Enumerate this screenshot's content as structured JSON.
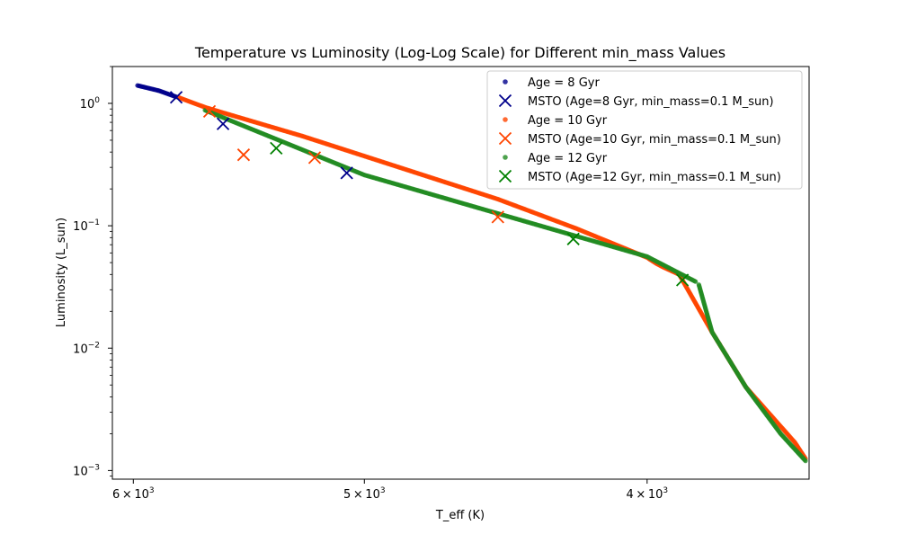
{
  "chart_data": {
    "type": "scatter",
    "title": "Temperature vs Luminosity (Log-Log Scale) for Different min_mass Values",
    "xlabel": "T_eff (K)",
    "ylabel": "Luminosity (L_sun)",
    "xscale": "log",
    "yscale": "log",
    "x_inverted": true,
    "xlim": [
      6100,
      3520
    ],
    "ylim": [
      0.00085,
      2.0
    ],
    "grid": false,
    "legend_position": "upper right",
    "x_major_ticks": [
      {
        "value": 6000,
        "base": "6 × 10",
        "exp": "3"
      },
      {
        "value": 5000,
        "base": "5 × 10",
        "exp": "3"
      },
      {
        "value": 4000,
        "base": "4 × 10",
        "exp": "3"
      }
    ],
    "y_major_ticks": [
      {
        "value": 1,
        "base": "10",
        "exp": "0"
      },
      {
        "value": 0.1,
        "base": "10",
        "exp": "−1"
      },
      {
        "value": 0.01,
        "base": "10",
        "exp": "−2"
      },
      {
        "value": 0.001,
        "base": "10",
        "exp": "−3"
      }
    ],
    "series": [
      {
        "name": "Age = 8 Gyr",
        "kind": "points",
        "color": "#00008b",
        "segments": [
          {
            "x": [
              5980,
              5880,
              5800
            ],
            "y": [
              1.4,
              1.27,
              1.13
            ]
          }
        ]
      },
      {
        "name": "MSTO (Age=8 Gyr, min_mass=0.1 M_sun)",
        "kind": "x-marker",
        "color": "#00008b",
        "x": [
          5800,
          5590,
          5070
        ],
        "y": [
          1.12,
          0.68,
          0.27
        ]
      },
      {
        "name": "Age = 10 Gyr",
        "kind": "points",
        "color": "#ff4500",
        "segments": [
          {
            "x": [
              5790,
              5730,
              5670,
              5600,
              5250,
              4500,
              4230,
              4000,
              3970,
              3950,
              3900,
              3800,
              3700,
              3560,
              3530
            ],
            "y": [
              1.12,
              1.02,
              0.93,
              0.85,
              0.54,
              0.165,
              0.095,
              0.055,
              0.049,
              0.046,
              0.04,
              0.0135,
              0.0048,
              0.0017,
              0.00125
            ]
          }
        ]
      },
      {
        "name": "MSTO (Age=10 Gyr, min_mass=0.1 M_sun)",
        "kind": "x-marker",
        "color": "#ff4500",
        "x": [
          5650,
          5500,
          5200,
          4500
        ],
        "y": [
          0.86,
          0.38,
          0.36,
          0.118
        ]
      },
      {
        "name": "Age = 12 Gyr",
        "kind": "points",
        "color": "#228b22",
        "segments": [
          {
            "x": [
              5670,
              5000,
              4000,
              3850
            ],
            "y": [
              0.88,
              0.26,
              0.056,
              0.035
            ]
          },
          {
            "x": [
              3840,
              3800,
              3700,
              3600,
              3530
            ],
            "y": [
              0.033,
              0.0135,
              0.0048,
              0.002,
              0.0012
            ]
          }
        ]
      },
      {
        "name": "MSTO (Age=12 Gyr, min_mass=0.1 M_sun)",
        "kind": "x-marker",
        "color": "#008000",
        "x": [
          5360,
          4240,
          3890
        ],
        "y": [
          0.43,
          0.078,
          0.036
        ]
      }
    ]
  }
}
